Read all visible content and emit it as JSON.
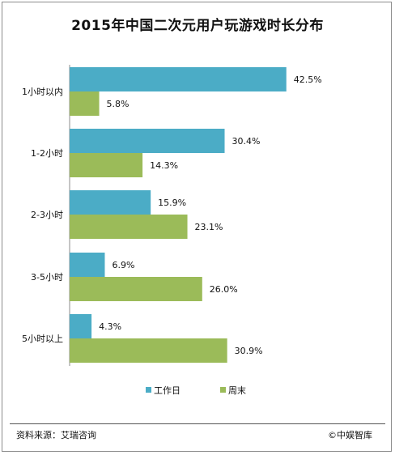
{
  "title": "2015年中国二次元用户玩游戏时长分布",
  "chart_data": {
    "type": "bar",
    "orientation": "horizontal",
    "categories": [
      "1小时以内",
      "1-2小时",
      "2-3小时",
      "3-5小时",
      "5小时以上"
    ],
    "series": [
      {
        "name": "工作日",
        "values": [
          42.5,
          30.4,
          15.9,
          6.9,
          4.3
        ],
        "color": "#4bacc6"
      },
      {
        "name": "周末",
        "values": [
          5.8,
          14.3,
          23.1,
          26.0,
          30.9
        ],
        "color": "#9bbb59"
      }
    ],
    "value_labels": [
      [
        "42.5%",
        "30.4%",
        "15.9%",
        "6.9%",
        "4.3%"
      ],
      [
        "5.8%",
        "14.3%",
        "23.1%",
        "26.0%",
        "30.9%"
      ]
    ],
    "xlim": [
      0,
      45
    ],
    "grid": false,
    "legend_position": "bottom"
  },
  "footer": {
    "source": "资料来源：艾瑞咨询",
    "copyright": "©中娱智库"
  }
}
